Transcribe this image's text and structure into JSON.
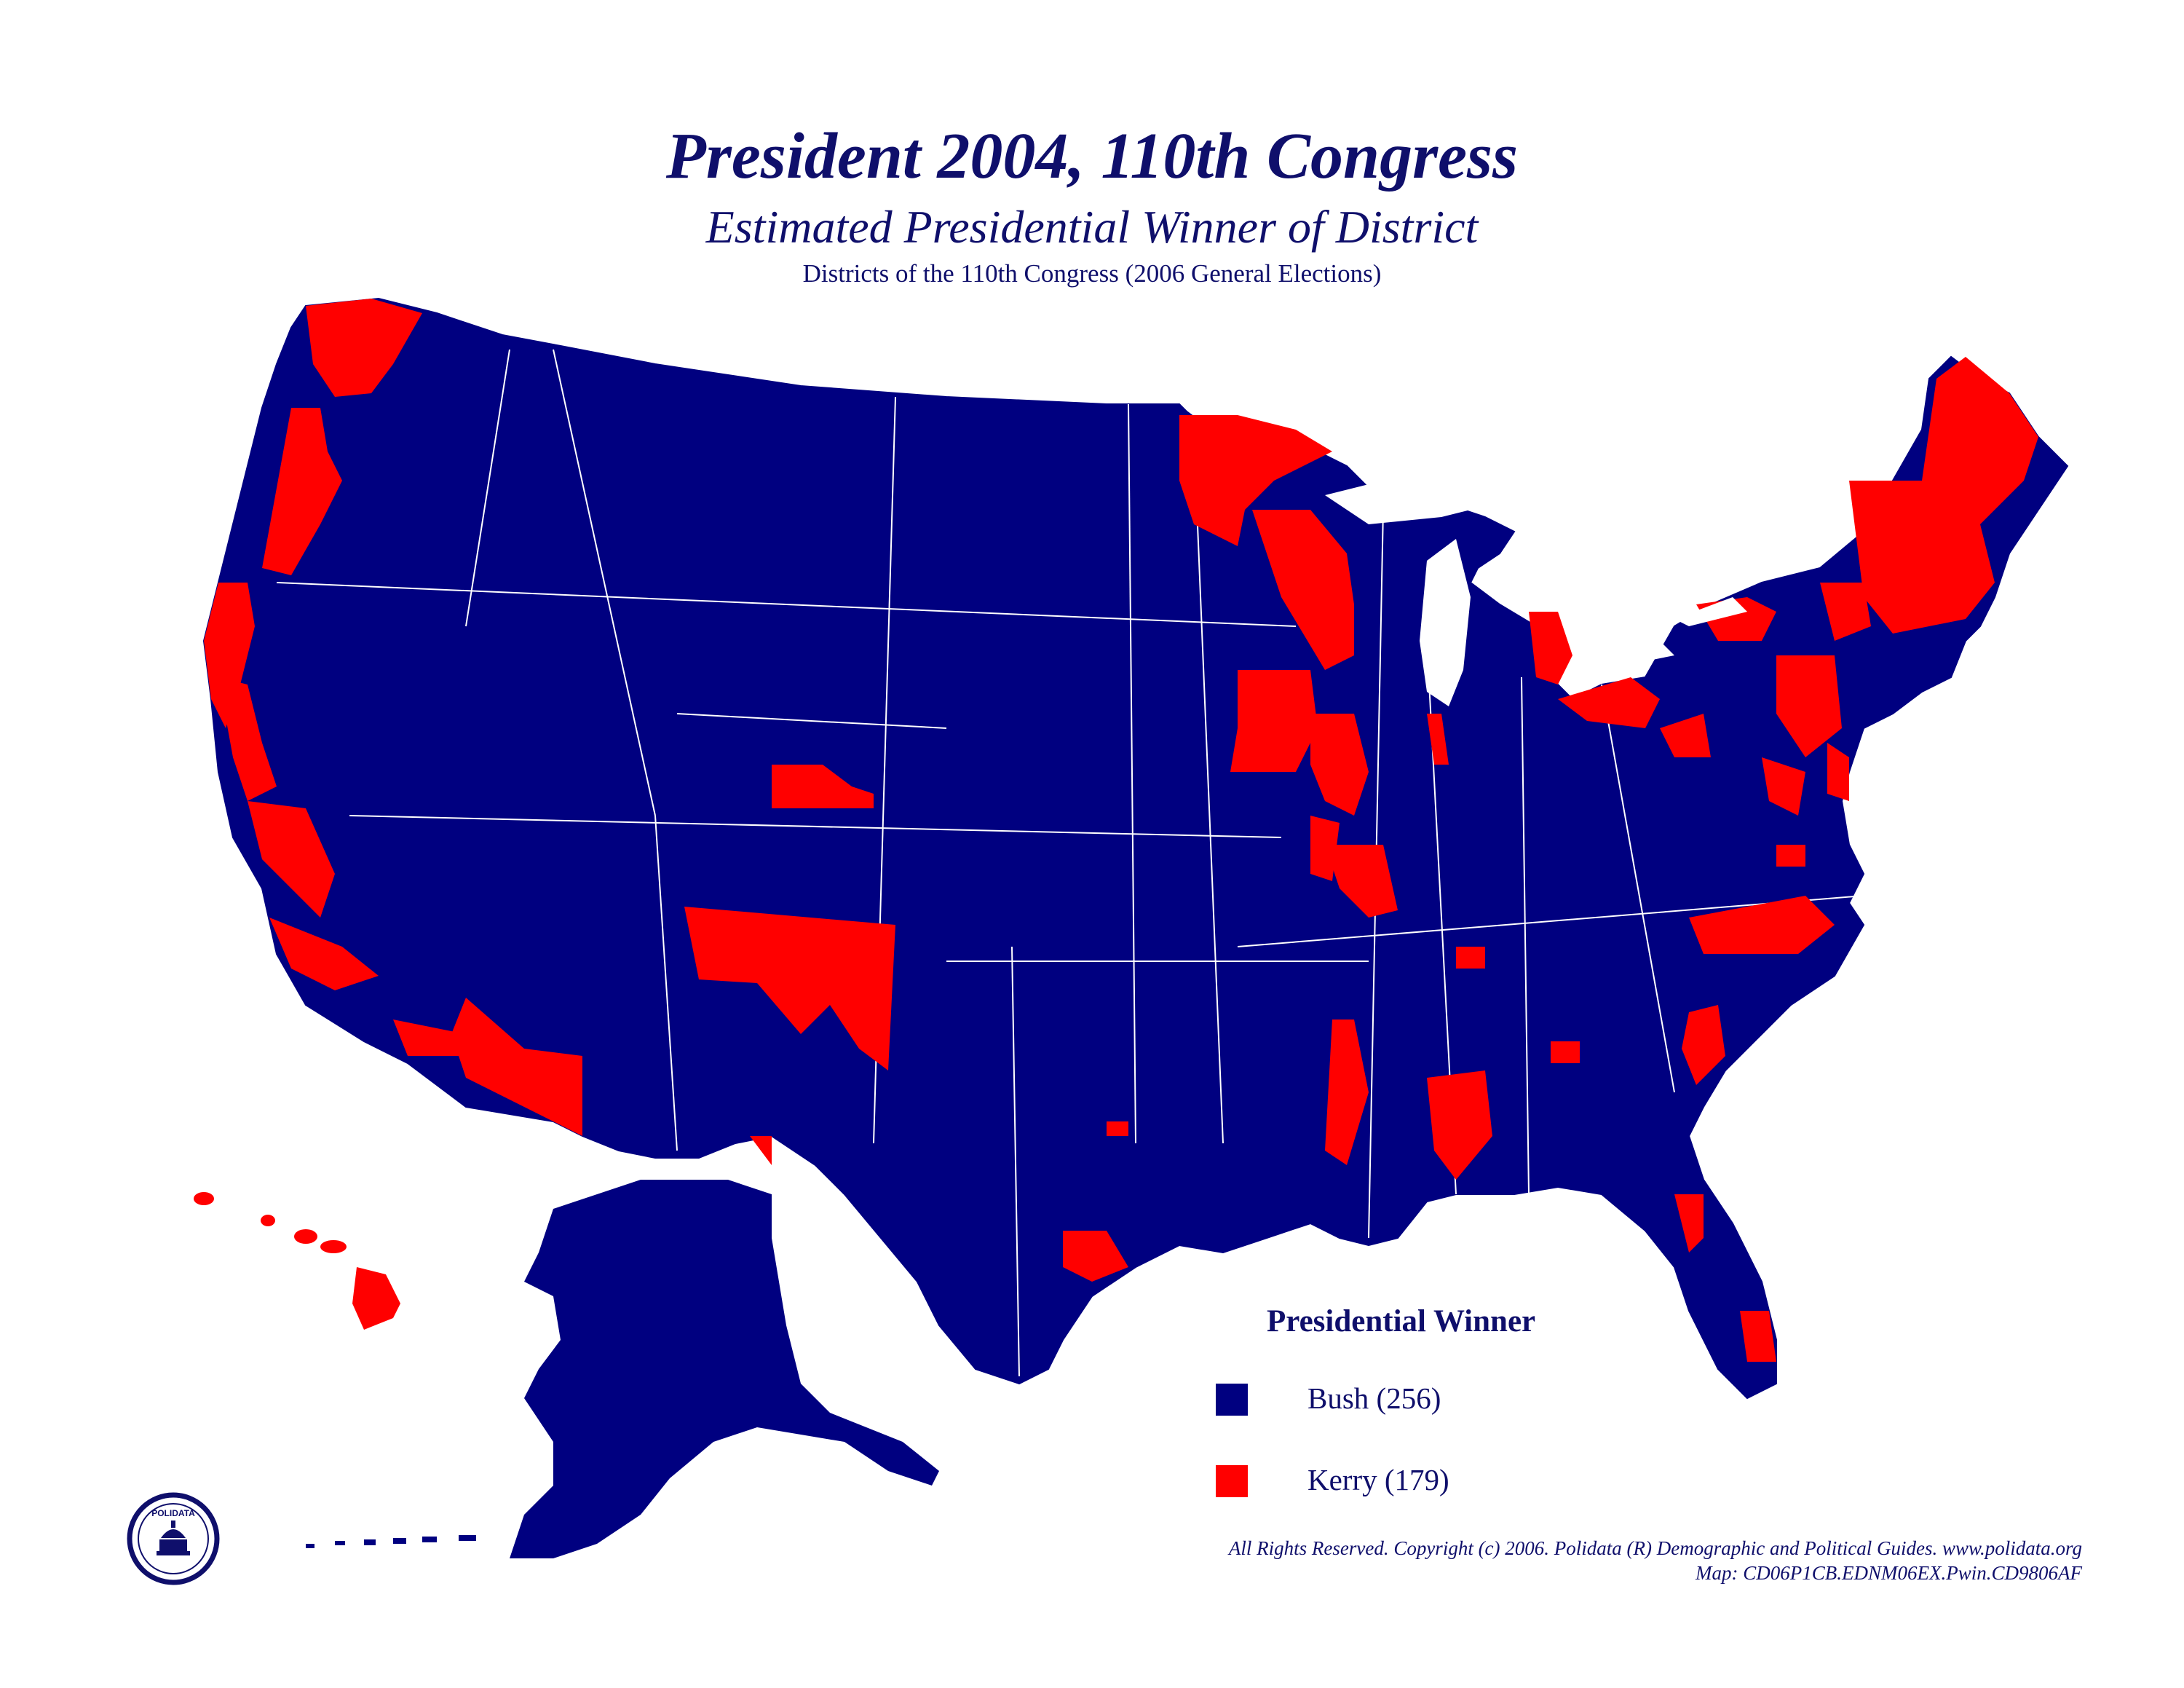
{
  "header": {
    "title": "President 2004, 110th Congress",
    "subtitle": "Estimated Presidential Winner of District",
    "subsubtitle": "Districts of the 110th Congress (2006 General Elections)"
  },
  "legend": {
    "title": "Presidential Winner",
    "items": [
      {
        "label": "Bush (256)",
        "color": "#000080"
      },
      {
        "label": "Kerry (179)",
        "color": "#ff0000"
      }
    ]
  },
  "footer": {
    "copyright": "All Rights Reserved. Copyright (c) 2006. Polidata (R) Demographic and Political Guides. www.polidata.org",
    "map_id": "Map: CD06P1CB.EDNM06EX.Pwin.CD9806AF"
  },
  "logo": {
    "text": "POLIDATA"
  },
  "colors": {
    "bush": "#000080",
    "kerry": "#ff0000",
    "borders": "#ffffff",
    "text": "#0f0f6b"
  }
}
